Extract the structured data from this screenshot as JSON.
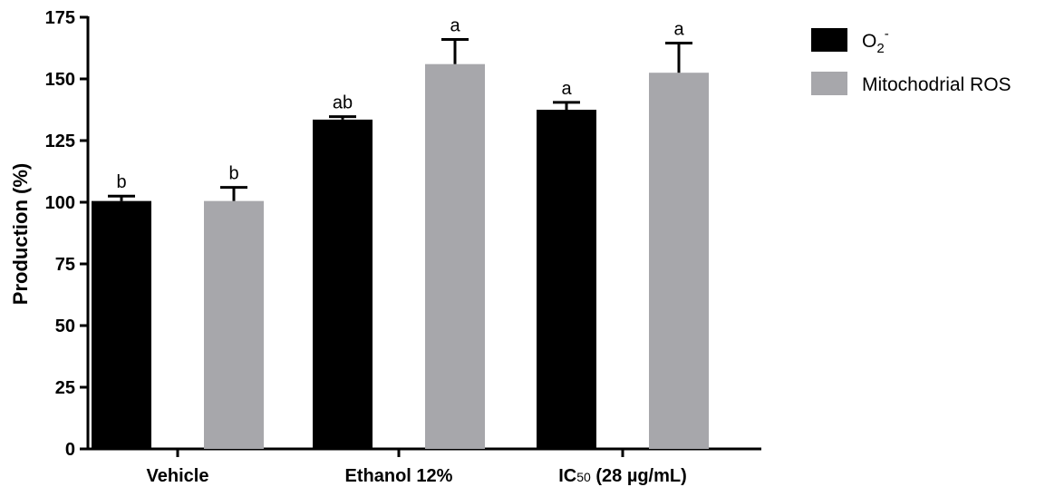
{
  "chart_data": {
    "type": "bar",
    "ylabel": "Production (%)",
    "ylim": [
      0,
      175
    ],
    "yticks": [
      0,
      25,
      50,
      75,
      100,
      125,
      150,
      175
    ],
    "grid": false,
    "legend_position": "top-right",
    "categories": [
      "Vehicle",
      "Ethanol 12%",
      "IC50 (28 µg/mL)"
    ],
    "category_parts": [
      {
        "main": "Vehicle"
      },
      {
        "main": "Ethanol 12%"
      },
      {
        "main": "IC",
        "sub": "50",
        "rest": " (28 µg/mL)"
      }
    ],
    "series": [
      {
        "name": "O2-",
        "name_parts": {
          "base": "O",
          "sub": "2",
          "sup": "-"
        },
        "color": "#000000",
        "values": [
          100.5,
          133.5,
          137.5
        ],
        "errors": [
          2,
          1.2,
          3
        ],
        "sig": [
          "b",
          "ab",
          "a"
        ]
      },
      {
        "name": "Mitochodrial ROS",
        "color": "#a7a7ab",
        "values": [
          100.5,
          156,
          152.5
        ],
        "errors": [
          5.5,
          10,
          12
        ],
        "sig": [
          "b",
          "a",
          "a"
        ]
      }
    ]
  }
}
